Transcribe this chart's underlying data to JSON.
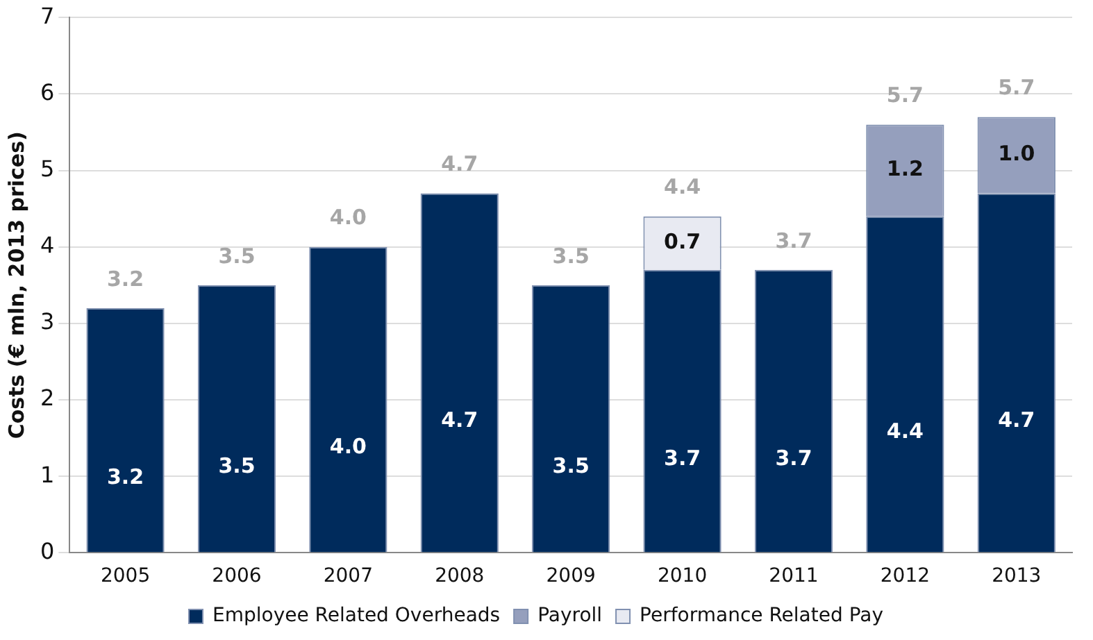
{
  "chart_data": {
    "type": "bar",
    "ylabel": "Costs (€ mln, 2013 prices)",
    "categories": [
      "2005",
      "2006",
      "2007",
      "2008",
      "2009",
      "2010",
      "2011",
      "2012",
      "2013"
    ],
    "stacked": true,
    "series": [
      {
        "name": "Employee Related Overheads",
        "color": "#002b5c",
        "values": [
          3.2,
          3.5,
          4.0,
          4.7,
          3.5,
          3.7,
          3.7,
          4.4,
          4.7
        ],
        "value_labels": [
          "3.2",
          "3.5",
          "4.0",
          "4.7",
          "3.5",
          "3.7",
          "3.7",
          "4.4",
          "4.7"
        ]
      },
      {
        "name": "Payroll",
        "color": "#959fbd",
        "values": [
          null,
          null,
          null,
          null,
          null,
          null,
          null,
          1.2,
          1.0
        ],
        "value_labels": [
          null,
          null,
          null,
          null,
          null,
          null,
          null,
          "1.2",
          "1.0"
        ]
      },
      {
        "name": "Performance Related Pay",
        "color": "#e8eaf2",
        "values": [
          null,
          null,
          null,
          null,
          null,
          0.7,
          null,
          null,
          null
        ],
        "value_labels": [
          null,
          null,
          null,
          null,
          null,
          "0.7",
          null,
          null,
          null
        ]
      }
    ],
    "totals": [
      "3.2",
      "3.5",
      "4.0",
      "4.7",
      "3.5",
      "4.4",
      "3.7",
      "5.7",
      "5.7"
    ],
    "ylim": [
      0,
      7
    ],
    "yticks": [
      0,
      1,
      2,
      3,
      4,
      5,
      6,
      7
    ],
    "grid": "y",
    "legend": "bottom"
  }
}
